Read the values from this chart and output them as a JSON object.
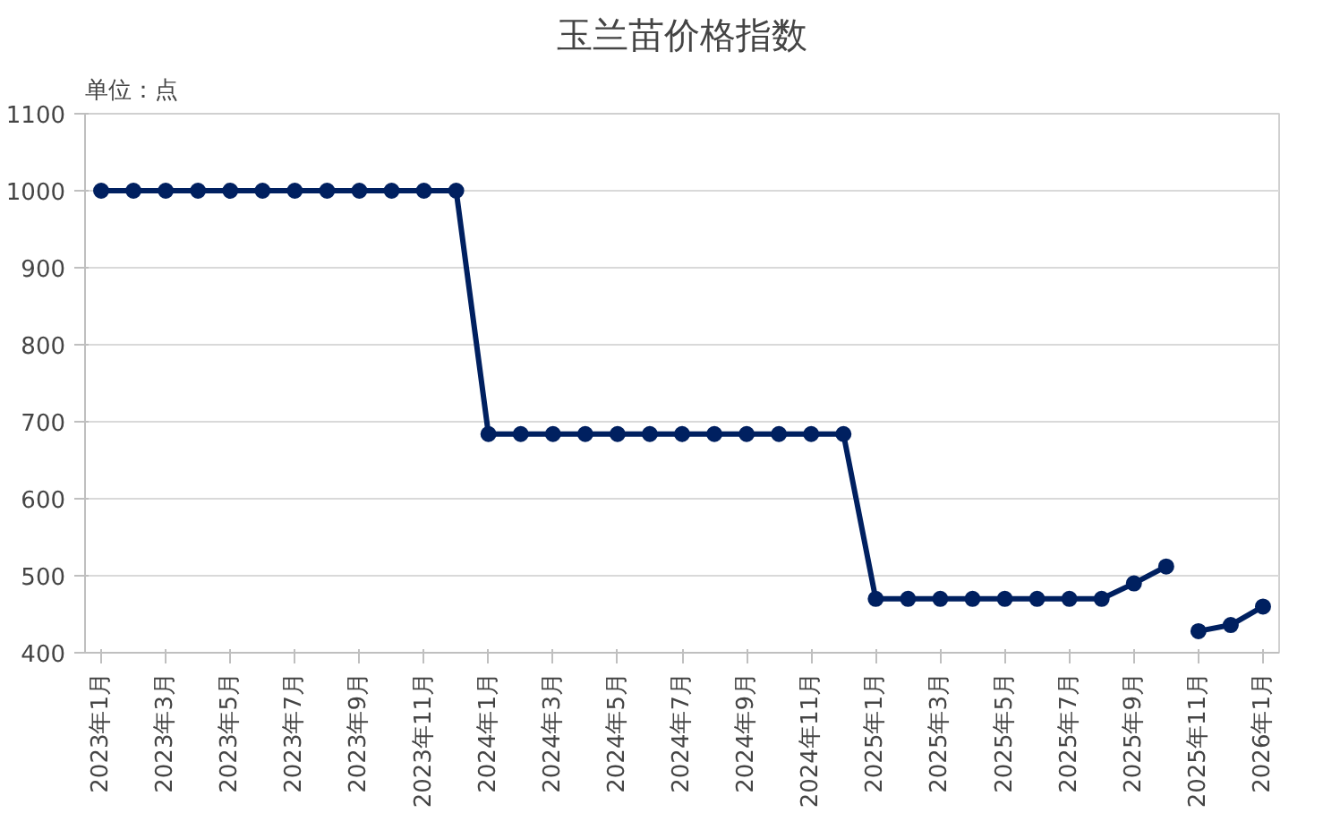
{
  "chart_data": {
    "type": "line",
    "title": "玉兰苗价格指数",
    "ylabel": "单位：点",
    "categories": [
      "2023年1月",
      null,
      "2023年3月",
      null,
      "2023年5月",
      null,
      "2023年7月",
      null,
      "2023年9月",
      null,
      "2023年11月",
      null,
      "2024年1月",
      null,
      "2024年3月",
      null,
      "2024年5月",
      null,
      "2024年7月",
      null,
      "2024年9月",
      null,
      "2024年11月",
      null,
      "2025年1月",
      null,
      "2025年3月",
      null,
      "2025年5月",
      null,
      "2025年7月",
      null,
      "2025年9月",
      null,
      "2025年11月",
      null,
      "2026年1月"
    ],
    "series": [
      {
        "color": "#002060",
        "values": [
          1000,
          1000,
          1000,
          1000,
          1000,
          1000,
          1000,
          1000,
          1000,
          1000,
          1000,
          1000,
          684,
          684,
          684,
          684,
          684,
          684,
          684,
          684,
          684,
          684,
          684,
          684,
          470,
          470,
          470,
          470,
          470,
          470,
          470,
          470,
          490,
          512,
          null,
          null,
          null
        ]
      },
      {
        "color": "#002060",
        "values": [
          null,
          null,
          null,
          null,
          null,
          null,
          null,
          null,
          null,
          null,
          null,
          null,
          null,
          null,
          null,
          null,
          null,
          null,
          null,
          null,
          null,
          null,
          null,
          null,
          null,
          null,
          null,
          null,
          null,
          null,
          null,
          null,
          null,
          null,
          428,
          436,
          460
        ]
      }
    ],
    "ylim": [
      400,
      1100
    ],
    "yticks": [
      400,
      500,
      600,
      700,
      800,
      900,
      1000,
      1100
    ],
    "grid": "y",
    "marker": "circle",
    "line_style": "solid"
  }
}
